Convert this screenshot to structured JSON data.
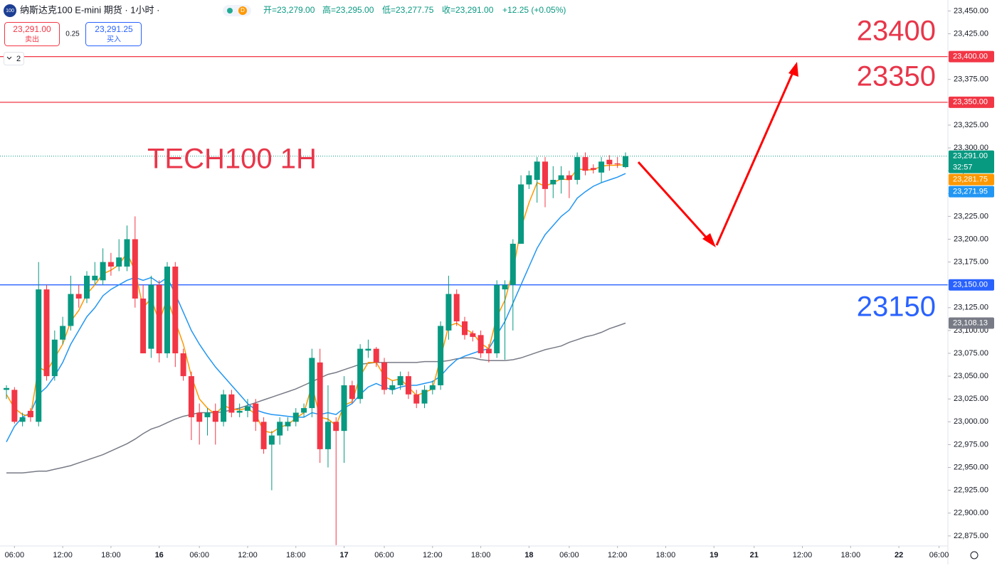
{
  "header": {
    "symbol_icon": "100",
    "title": "纳斯达克100 E-mini 期货 · 1小时 ·",
    "flag": "D",
    "ohlc": [
      "开=23,279.00",
      "高=23,295.00",
      "低=23,277.75",
      "收=23,291.00"
    ],
    "change": "+12.25 (+0.05%)",
    "sell_price": "23,291.00",
    "sell": "卖出",
    "spread": "0.25",
    "buy_price": "23,291.25",
    "buy": "买入",
    "indicators_count": "2"
  },
  "chart_data": {
    "type": "candlestick",
    "annotations": [
      "TECH100 1H",
      "23400",
      "23350",
      "23150"
    ],
    "up_color": "#089981",
    "down_color": "#f23645",
    "open": [
      23035,
      23035,
      23000,
      23012,
      23000,
      23145,
      23050,
      23090,
      23105,
      23140,
      23135,
      23155,
      23155,
      23175,
      23170,
      23170,
      23200,
      23135,
      23080,
      23150,
      23075,
      23170,
      23075,
      23050,
      23010,
      23005,
      23012,
      23000,
      23030,
      23010,
      23012,
      23020,
      23000,
      22975,
      22985,
      22995,
      23000,
      23010,
      23015,
      23065,
      22970,
      23000,
      22990,
      23040,
      23025,
      23078,
      23080,
      23065,
      23035,
      23040,
      23050,
      23030,
      23020,
      23035,
      23040,
      23100,
      23140,
      23110,
      23097,
      23095,
      23080,
      23075,
      23145,
      23150,
      23195,
      23260,
      23265,
      23285,
      23260,
      23265,
      23270,
      23265,
      23290,
      23278,
      23273,
      23287,
      23283,
      23279
    ],
    "high": [
      23040,
      23038,
      23010,
      23015,
      23175,
      23150,
      23100,
      23115,
      23160,
      23150,
      23165,
      23175,
      23190,
      23185,
      23200,
      23215,
      23225,
      23150,
      23160,
      23155,
      23175,
      23175,
      23080,
      23055,
      23020,
      23015,
      23020,
      23035,
      23035,
      23020,
      23025,
      23025,
      23005,
      22990,
      23005,
      23005,
      23015,
      23020,
      23080,
      23080,
      23040,
      23005,
      23050,
      23045,
      23085,
      23090,
      23082,
      23070,
      23045,
      23055,
      23055,
      23035,
      23040,
      23045,
      23110,
      23160,
      23145,
      23115,
      23100,
      23100,
      23085,
      23155,
      23155,
      23200,
      23270,
      23275,
      23290,
      23290,
      23280,
      23280,
      23275,
      23295,
      23295,
      23282,
      23290,
      23292,
      23290,
      23295
    ],
    "low": [
      23025,
      22998,
      22995,
      23000,
      22995,
      23045,
      23045,
      23085,
      23100,
      23125,
      23130,
      23150,
      23150,
      23160,
      23165,
      23165,
      23125,
      23075,
      23070,
      23065,
      23070,
      23060,
      23045,
      22980,
      22975,
      22985,
      22975,
      22995,
      23005,
      23005,
      23005,
      22990,
      22965,
      22925,
      22975,
      22990,
      22995,
      23005,
      23005,
      22955,
      22950,
      22865,
      22955,
      23020,
      23020,
      23070,
      23060,
      23030,
      23030,
      23035,
      23025,
      23015,
      23015,
      23030,
      23035,
      23090,
      23105,
      23090,
      23088,
      23070,
      23065,
      23070,
      23068,
      23100,
      23195,
      23255,
      23240,
      23235,
      23245,
      23250,
      23245,
      23260,
      23270,
      23272,
      23262,
      23275,
      23278,
      23277.75
    ],
    "close": [
      23037,
      23000,
      23005,
      23005,
      23145,
      23050,
      23090,
      23105,
      23140,
      23135,
      23160,
      23160,
      23175,
      23170,
      23180,
      23200,
      23135,
      23075,
      23150,
      23075,
      23170,
      23075,
      23050,
      23005,
      23000,
      23010,
      23000,
      23030,
      23010,
      23012,
      23017,
      23000,
      22970,
      22985,
      23000,
      23000,
      23010,
      23015,
      23070,
      22970,
      23000,
      22990,
      23040,
      23025,
      23080,
      23080,
      23065,
      23035,
      23040,
      23050,
      23030,
      23020,
      23035,
      23040,
      23105,
      23140,
      23110,
      23095,
      23093,
      23075,
      23075,
      23150,
      23150,
      23195,
      23260,
      23270,
      23285,
      23255,
      23265,
      23270,
      23265,
      23290,
      23275,
      23276,
      23285,
      23282,
      23282,
      23291
    ],
    "lines": [
      {
        "color": "#787b86",
        "values": [
          22944,
          22944,
          22944,
          22945,
          22946,
          22946,
          22948,
          22950,
          22952,
          22955,
          22958,
          22961,
          22964,
          22968,
          22972,
          22976,
          22981,
          22987,
          22992,
          22995,
          22999,
          23003,
          23006,
          23008,
          23010,
          23010,
          23010,
          23011,
          23013,
          23015,
          23018,
          23021,
          23024,
          23027,
          23030,
          23033,
          23036,
          23040,
          23044,
          23048,
          23052,
          23054,
          23057,
          23060,
          23063,
          23064,
          23065,
          23065,
          23065,
          23065,
          23065,
          23065,
          23066,
          23066,
          23066,
          23067,
          23069,
          23070,
          23070,
          23068,
          23067,
          23067,
          23067,
          23068,
          23070,
          23073,
          23076,
          23079,
          23081,
          23083,
          23087,
          23090,
          23093,
          23095,
          23098,
          23102,
          23105,
          23108.13
        ]
      },
      {
        "color": "#2196f3",
        "values": [
          22978,
          22995,
          23005,
          23010,
          23030,
          23038,
          23050,
          23065,
          23085,
          23100,
          23115,
          23125,
          23138,
          23145,
          23150,
          23155,
          23158,
          23155,
          23158,
          23152,
          23158,
          23140,
          23120,
          23100,
          23085,
          23072,
          23060,
          23050,
          23040,
          23030,
          23020,
          23013,
          23010,
          23008,
          23007,
          23006,
          23005,
          23005,
          23010,
          23008,
          23010,
          23008,
          23015,
          23020,
          23030,
          23038,
          23042,
          23038,
          23035,
          23038,
          23040,
          23040,
          23042,
          23044,
          23050,
          23060,
          23068,
          23072,
          23075,
          23078,
          23080,
          23095,
          23110,
          23130,
          23150,
          23170,
          23190,
          23205,
          23215,
          23225,
          23232,
          23245,
          23252,
          23258,
          23262,
          23265,
          23268,
          23271.95
        ]
      },
      {
        "color": "#ff9800",
        "values": [
          23030,
          23015,
          23008,
          23006,
          23060,
          23055,
          23070,
          23085,
          23110,
          23122,
          23140,
          23150,
          23162,
          23166,
          23172,
          23185,
          23165,
          23125,
          23135,
          23110,
          23135,
          23110,
          23085,
          23050,
          23025,
          23015,
          23008,
          23018,
          23014,
          23013,
          23015,
          23008,
          22990,
          22988,
          22994,
          22997,
          23004,
          23010,
          23040,
          23005,
          23003,
          22996,
          23018,
          23022,
          23050,
          23065,
          23065,
          23050,
          23045,
          23047,
          23038,
          23029,
          23032,
          23036,
          23070,
          23105,
          23108,
          23102,
          23097,
          23086,
          23080,
          23115,
          23133,
          23165,
          23212,
          23240,
          23262,
          23258,
          23262,
          23266,
          23265,
          23277,
          23276,
          23276,
          23280,
          23281,
          23281,
          23281.75
        ]
      }
    ],
    "levels": [
      {
        "value": 23400,
        "color": "#f23645"
      },
      {
        "value": 23350,
        "color": "#f23645"
      },
      {
        "value": 23150,
        "color": "#2962ff"
      }
    ],
    "price_tags": [
      {
        "value": 23400,
        "label": "23,400.00",
        "color": "#f23645"
      },
      {
        "value": 23350,
        "label": "23,350.00",
        "color": "#f23645"
      },
      {
        "value": 23291,
        "label": "23,291.00",
        "countdown": "32:57",
        "color": "#089981"
      },
      {
        "value": 23281.75,
        "label": "23,281.75",
        "color": "#ff9800"
      },
      {
        "value": 23271.95,
        "label": "23,271.95",
        "color": "#2196f3"
      },
      {
        "value": 23150,
        "label": "23,150.00",
        "color": "#2962ff"
      },
      {
        "value": 23108.13,
        "label": "23,108.13",
        "color": "#787b86"
      }
    ],
    "ylim": [
      22864,
      23462
    ],
    "yticks": [
      {
        "value": 22875,
        "label": "22,875.00"
      },
      {
        "value": 22900,
        "label": "22,900.00"
      },
      {
        "value": 22925,
        "label": "22,925.00"
      },
      {
        "value": 22950,
        "label": "22,950.00"
      },
      {
        "value": 22975,
        "label": "22,975.00"
      },
      {
        "value": 23000,
        "label": "23,000.00"
      },
      {
        "value": 23025,
        "label": "23,025.00"
      },
      {
        "value": 23050,
        "label": "23,050.00"
      },
      {
        "value": 23075,
        "label": "23,075.00"
      },
      {
        "value": 23100,
        "label": "23,100.00"
      },
      {
        "value": 23125,
        "label": "23,125.00"
      },
      {
        "value": 23150,
        "label": "23,150.00"
      },
      {
        "value": 23175,
        "label": "23,175.00"
      },
      {
        "value": 23200,
        "label": "23,200.00"
      },
      {
        "value": 23225,
        "label": "23,225.00"
      },
      {
        "value": 23250,
        "label": "23,250.00"
      },
      {
        "value": 23275,
        "label": "23,275.00"
      },
      {
        "value": 23300,
        "label": "23,300.00"
      },
      {
        "value": 23325,
        "label": "23,325.00"
      },
      {
        "value": 23350,
        "label": "23,350.00"
      },
      {
        "value": 23375,
        "label": "23,375.00"
      },
      {
        "value": 23400,
        "label": "23,400.00"
      },
      {
        "value": 23425,
        "label": "23,425.00"
      },
      {
        "value": 23450,
        "label": "23,450.00"
      }
    ],
    "xlim": [
      -0.8,
      117.1
    ],
    "xticks": [
      {
        "value": 1,
        "label": "06:00"
      },
      {
        "value": 7,
        "label": "12:00"
      },
      {
        "value": 13,
        "label": "18:00"
      },
      {
        "value": 19,
        "label": "16"
      },
      {
        "value": 24,
        "label": "06:00"
      },
      {
        "value": 30,
        "label": "12:00"
      },
      {
        "value": 36,
        "label": "18:00"
      },
      {
        "value": 42,
        "label": "17"
      },
      {
        "value": 47,
        "label": "06:00"
      },
      {
        "value": 53,
        "label": "12:00"
      },
      {
        "value": 59,
        "label": "18:00"
      },
      {
        "value": 65,
        "label": "18"
      },
      {
        "value": 70,
        "label": "06:00"
      },
      {
        "value": 76,
        "label": "12:00"
      },
      {
        "value": 82,
        "label": "18:00"
      },
      {
        "value": 88,
        "label": "19"
      },
      {
        "value": 93,
        "label": "21"
      },
      {
        "value": 99,
        "label": "12:00"
      },
      {
        "value": 105,
        "label": "18:00"
      },
      {
        "value": 111,
        "label": "22"
      },
      {
        "value": 116,
        "label": "06:00"
      }
    ]
  }
}
